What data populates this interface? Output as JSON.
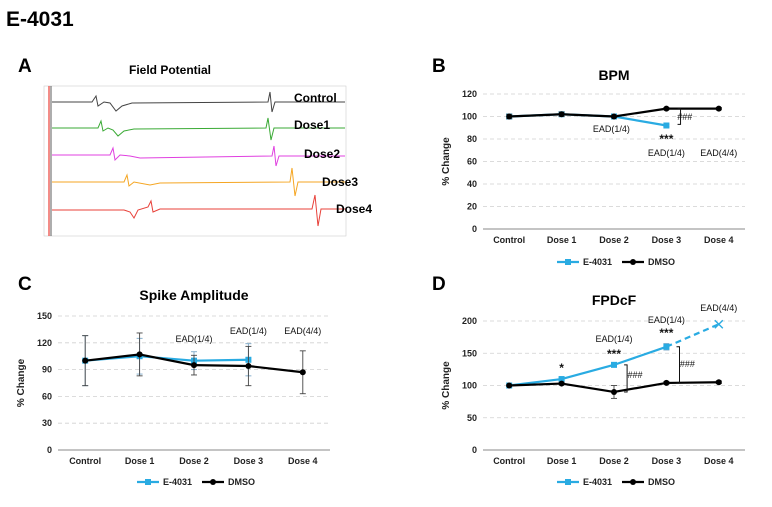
{
  "figure": {
    "title": "E-4031",
    "panel_letters": [
      "A",
      "B",
      "C",
      "D"
    ]
  },
  "field_potential": {
    "title": "Field Potential",
    "traces": [
      {
        "label": "Control",
        "color": "#444444"
      },
      {
        "label": "Dose1",
        "color": "#3aaa35"
      },
      {
        "label": "Dose2",
        "color": "#e040e0"
      },
      {
        "label": "Dose3",
        "color": "#f5a623"
      },
      {
        "label": "Dose4",
        "color": "#e8413a"
      }
    ]
  },
  "chart_data": [
    {
      "panel": "B",
      "type": "line",
      "title": "BPM",
      "ylabel": "% Change",
      "categories": [
        "Control",
        "Dose 1",
        "Dose 2",
        "Dose 3",
        "Dose 4"
      ],
      "ylim": [
        0,
        120
      ],
      "yticks": [
        0,
        20,
        40,
        60,
        80,
        100,
        120
      ],
      "grid": true,
      "legend": "bottom",
      "series": [
        {
          "name": "E-4031",
          "color": "#29abe2",
          "values": [
            100,
            102,
            100,
            92,
            null
          ],
          "errors": [
            2,
            1,
            1,
            1,
            null
          ]
        },
        {
          "name": "DMSO",
          "color": "#000000",
          "values": [
            100,
            102,
            100,
            107,
            107
          ],
          "errors": [
            2,
            2,
            1,
            1,
            1
          ]
        }
      ],
      "annotations": [
        {
          "text": "EAD(1/4)",
          "x": "Dose 2"
        },
        {
          "text": "***",
          "x": "Dose 3"
        },
        {
          "text": "EAD(1/4)",
          "x": "Dose 3"
        },
        {
          "text": "EAD(4/4)",
          "x": "Dose 4"
        },
        {
          "text": "###",
          "x": "Dose 3"
        }
      ]
    },
    {
      "panel": "C",
      "type": "line",
      "title": "Spike Amplitude",
      "ylabel": "% Change",
      "categories": [
        "Control",
        "Dose 1",
        "Dose 2",
        "Dose 3",
        "Dose 4"
      ],
      "ylim": [
        0,
        150
      ],
      "yticks": [
        0,
        30,
        60,
        90,
        120,
        150
      ],
      "grid": true,
      "legend": "bottom",
      "series": [
        {
          "name": "E-4031",
          "color": "#29abe2",
          "values": [
            100,
            105,
            100,
            101,
            null
          ],
          "errors": [
            28,
            20,
            10,
            18,
            null
          ]
        },
        {
          "name": "DMSO",
          "color": "#000000",
          "values": [
            100,
            107,
            95,
            94,
            87
          ],
          "errors": [
            28,
            24,
            11,
            22,
            24
          ]
        }
      ],
      "annotations": [
        {
          "text": "EAD(1/4)",
          "x": "Dose 2"
        },
        {
          "text": "EAD(1/4)",
          "x": "Dose 3"
        },
        {
          "text": "EAD(4/4)",
          "x": "Dose 4"
        }
      ]
    },
    {
      "panel": "D",
      "type": "line",
      "title": "FPDcF",
      "ylabel": "% Change",
      "categories": [
        "Control",
        "Dose 1",
        "Dose 2",
        "Dose 3",
        "Dose 4"
      ],
      "ylim": [
        0,
        200
      ],
      "yticks": [
        0,
        50,
        100,
        150,
        200
      ],
      "grid": true,
      "legend": "bottom",
      "series": [
        {
          "name": "E-4031",
          "color": "#29abe2",
          "values": [
            100,
            110,
            132,
            160,
            195
          ],
          "errors": [
            1,
            2,
            3,
            5,
            null
          ],
          "last_segment_dashed": true
        },
        {
          "name": "DMSO",
          "color": "#000000",
          "values": [
            100,
            103,
            90,
            104,
            105
          ],
          "errors": [
            1,
            2,
            10,
            2,
            2
          ]
        }
      ],
      "annotations": [
        {
          "text": "*",
          "x": "Dose 1"
        },
        {
          "text": "***",
          "x": "Dose 2"
        },
        {
          "text": "***",
          "x": "Dose 3"
        },
        {
          "text": "EAD(1/4)",
          "x": "Dose 2"
        },
        {
          "text": "EAD(1/4)",
          "x": "Dose 3"
        },
        {
          "text": "EAD(4/4)",
          "x": "Dose 4"
        },
        {
          "text": "###",
          "x": "Dose 2"
        },
        {
          "text": "###",
          "x": "Dose 3"
        }
      ]
    }
  ]
}
